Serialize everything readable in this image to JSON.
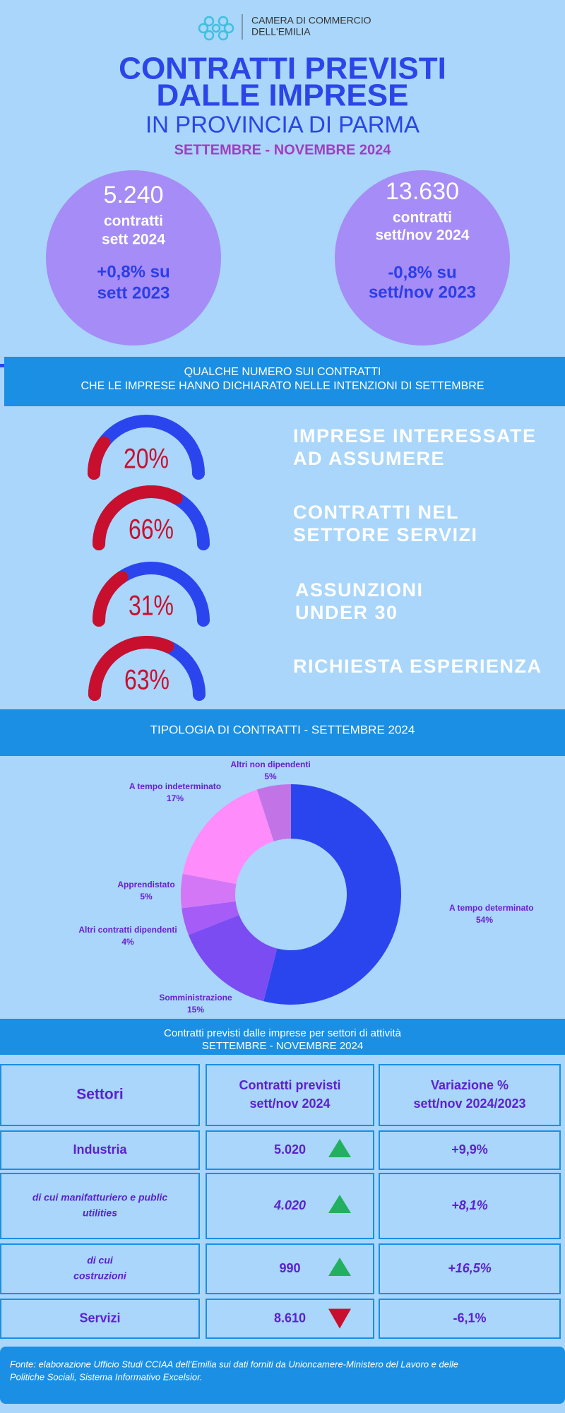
{
  "header": {
    "org": [
      "CAMERA DI COMMERCIO",
      "DELL'EMILIA"
    ],
    "title": [
      "CONTRATTI PREVISTI",
      "DALLE IMPRESE"
    ],
    "subtitle": "IN PROVINCIA DI PARMA",
    "period": "SETTEMBRE - NOVEMBRE  2024"
  },
  "highlights": [
    {
      "value": "5.240",
      "label": [
        "contratti",
        "sett 2024"
      ],
      "change": [
        "+0,8% su",
        "sett 2023"
      ]
    },
    {
      "value": "13.630",
      "label": [
        "contratti",
        "sett/nov 2024"
      ],
      "change": [
        "-0,8% su",
        "sett/nov 2023"
      ]
    }
  ],
  "section1": [
    "QUALCHE NUMERO SUI CONTRATTI",
    "CHE LE IMPRESE HANNO DICHIARATO NELLE INTENZIONI DI  SETTEMBRE"
  ],
  "gauges": [
    {
      "value": 20,
      "value_label": "20%",
      "label": [
        "IMPRESE INTERESSATE",
        "AD ASSUMERE"
      ]
    },
    {
      "value": 66,
      "value_label": "66%",
      "label": [
        "CONTRATTI NEL",
        "SETTORE SERVIZI"
      ]
    },
    {
      "value": 31,
      "value_label": "31%",
      "label": [
        "ASSUNZIONI",
        "UNDER 30"
      ]
    },
    {
      "value": 63,
      "value_label": "63%",
      "label": [
        "RICHIESTA ESPERIENZA"
      ]
    }
  ],
  "chart_data": {
    "type": "donut",
    "title": "TIPOLOGIA DI CONTRATTI - SETTEMBRE 2024",
    "categories": [
      "A tempo determinato",
      "Somministrazione",
      "Altri contratti dipendenti",
      "Apprendistato",
      "A tempo indeterminato",
      "Altri non dipendenti"
    ],
    "values": [
      54,
      15,
      4,
      5,
      17,
      5
    ],
    "value_labels": [
      "54%",
      "15%",
      "4%",
      "5%",
      "17%",
      "5%"
    ],
    "colors": [
      "#2b45ee",
      "#7a4cf2",
      "#a65cf6",
      "#d477f6",
      "#ff8cfb",
      "#c274e6"
    ]
  },
  "table": {
    "title": [
      "Contratti previsti dalle imprese per settori di attività",
      "SETTEMBRE - NOVEMBRE 2024"
    ],
    "header": [
      [
        "Settori"
      ],
      [
        "Contratti previsti",
        "sett/nov 2024"
      ],
      [
        "Variazione  %",
        "sett/nov  2024/2023"
      ]
    ],
    "rows": [
      {
        "sector": [
          "Industria"
        ],
        "value": "5.020",
        "trend": "up",
        "change": "+9,9%"
      },
      {
        "sector": [
          "di cui manifatturiero e public",
          "utilities"
        ],
        "value": "4.020",
        "trend": "up",
        "change": "+8,1%"
      },
      {
        "sector": [
          "di cui",
          "costruzioni"
        ],
        "value": "990",
        "trend": "up",
        "change": "+16,5%"
      },
      {
        "sector": [
          "Servizi"
        ],
        "value": "8.610",
        "trend": "down",
        "change": "-6,1%"
      }
    ]
  },
  "footer": [
    "Fonte: elaborazione Ufficio Studi CCIAA dell'Emilia sui dati forniti da Unioncamere-Ministero del Lavoro e delle",
    "Politiche Sociali, Sistema Informativo Excelsior."
  ]
}
